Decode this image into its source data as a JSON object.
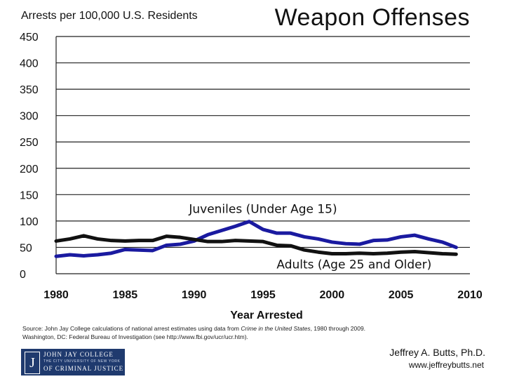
{
  "slide": {
    "author": "Jeffrey A. Butts, Ph.D.",
    "website": "www.jeffreybutts.net",
    "source_line1": "Source: John Jay College calculations of national arrest estimates using data from ",
    "source_italic": "Crime in the United States",
    "source_line1_end": ", 1980 through 2009.",
    "source_line2": "Washington, DC: Federal Bureau of Investigation (see http://www.fbi.gov/ucr/ucr.htm).",
    "logo": {
      "mark": "J",
      "name_line1": "JOHN JAY COLLEGE",
      "name_sub": "THE CITY UNIVERSITY OF NEW YORK",
      "name_line2": "OF CRIMINAL JUSTICE"
    }
  },
  "chart_data": {
    "type": "line",
    "title": "Weapon Offenses",
    "ylabel": "Arrests per 100,000 U.S. Residents",
    "xlabel": "Year Arrested",
    "xlim": [
      1980,
      2010
    ],
    "ylim": [
      0,
      450
    ],
    "x_ticks": [
      1980,
      1985,
      1990,
      1995,
      2000,
      2005,
      2010
    ],
    "y_ticks": [
      0,
      50,
      100,
      150,
      200,
      250,
      300,
      350,
      400,
      450
    ],
    "x": [
      1980,
      1981,
      1982,
      1983,
      1984,
      1985,
      1986,
      1987,
      1988,
      1989,
      1990,
      1991,
      1992,
      1993,
      1994,
      1995,
      1996,
      1997,
      1998,
      1999,
      2000,
      2001,
      2002,
      2003,
      2004,
      2005,
      2006,
      2007,
      2008,
      2009
    ],
    "series": [
      {
        "name": "Juveniles (Under Age 15)",
        "color": "#1a1aa0",
        "values": [
          33,
          36,
          34,
          36,
          39,
          46,
          45,
          44,
          54,
          56,
          62,
          74,
          82,
          90,
          99,
          84,
          77,
          77,
          70,
          66,
          60,
          57,
          56,
          63,
          64,
          70,
          73,
          66,
          60,
          50
        ]
      },
      {
        "name": "Adults (Age 25 and Older)",
        "color": "#111111",
        "values": [
          62,
          66,
          72,
          66,
          63,
          62,
          63,
          63,
          71,
          69,
          65,
          61,
          61,
          63,
          62,
          61,
          54,
          53,
          45,
          41,
          38,
          38,
          39,
          38,
          39,
          41,
          42,
          40,
          38,
          37
        ]
      }
    ],
    "annotations": [
      {
        "text": "Juveniles (Under Age 15)",
        "x": 1995,
        "y": 115
      },
      {
        "text": "Adults (Age 25 and Older)",
        "x": 2001.6,
        "y": 10
      }
    ],
    "grid": true,
    "legend": "inline labels"
  }
}
